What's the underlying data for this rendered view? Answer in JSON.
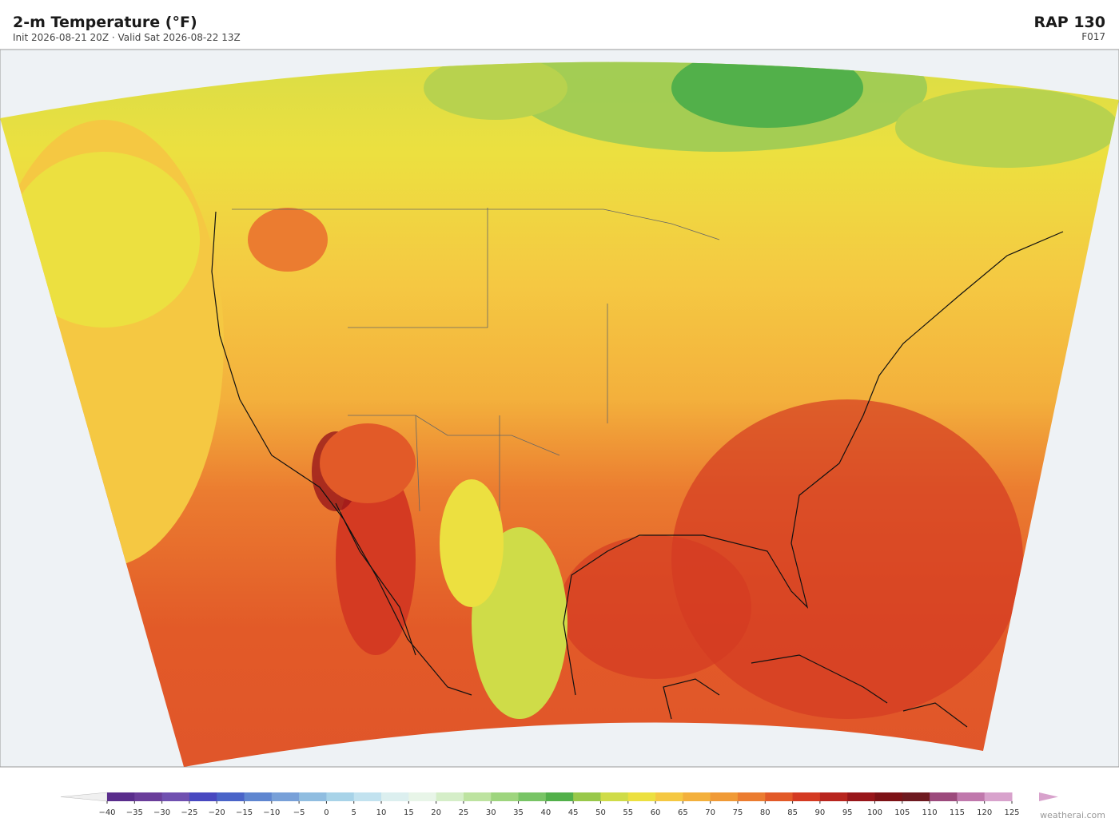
{
  "header": {
    "title": "2-m Temperature  (°F)",
    "subtitle": "Init 2026-08-21 20Z  ·  Valid Sat 2026-08-22 13Z",
    "model": "RAP  130",
    "forecast_hour": "F017"
  },
  "colorbar": {
    "ticks": [
      {
        "value": -40,
        "label": "−40"
      },
      {
        "value": -35,
        "label": "−35"
      },
      {
        "value": -30,
        "label": "−30"
      },
      {
        "value": -25,
        "label": "−25"
      },
      {
        "value": -20,
        "label": "−20"
      },
      {
        "value": -15,
        "label": "−15"
      },
      {
        "value": -10,
        "label": "−10"
      },
      {
        "value": -5,
        "label": "−5"
      },
      0,
      5,
      10,
      15,
      20,
      25,
      30,
      35,
      40,
      45,
      50,
      55,
      60,
      65,
      70,
      75,
      80,
      85,
      90,
      95,
      100,
      105,
      110,
      115,
      120,
      125
    ],
    "colors": [
      "#5a2d8c",
      "#6a3d9a",
      "#7050b0",
      "#4848c0",
      "#4a64c8",
      "#5f86d0",
      "#78a0d8",
      "#90bde0",
      "#a8d3e8",
      "#c2e2ef",
      "#dcefef",
      "#e8f5e8",
      "#d5eec8",
      "#bde3a0",
      "#9ed57e",
      "#78c465",
      "#52b04a",
      "#98c84a",
      "#cfdc48",
      "#ece040",
      "#f5c842",
      "#f3b03c",
      "#f09a36",
      "#eb7c30",
      "#e25a28",
      "#d43a22",
      "#b8251e",
      "#98161a",
      "#7d1216",
      "#6e1a20",
      "#9c4a7c",
      "#c078ac",
      "#d8a2cc"
    ]
  },
  "footer": {
    "credit": "weatherai.com"
  }
}
